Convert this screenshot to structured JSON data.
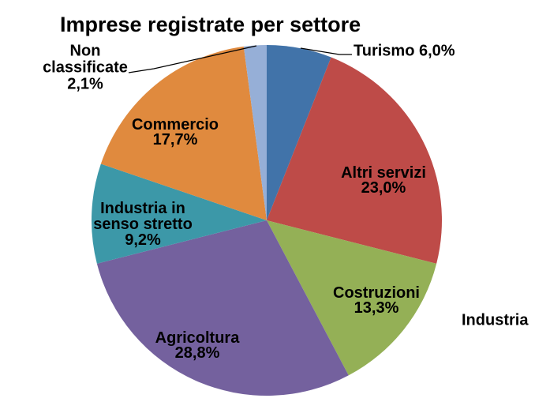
{
  "chart_data": {
    "type": "pie",
    "title": "Imprese registrate per settore",
    "direction": "clockwise",
    "start_angle_deg": 0,
    "legend_position": "none",
    "background_color": "#ffffff",
    "label_color": "#000000",
    "slices": [
      {
        "name": "Turismo",
        "pct": "6,0%",
        "value": 6.0,
        "color": "#4173A9",
        "label_placement": "callout-right"
      },
      {
        "name": "Altri servizi",
        "pct": "23,0%",
        "value": 23.0,
        "color": "#BE4B48",
        "label_placement": "inside"
      },
      {
        "name": "Costruzioni",
        "pct": "13,3%",
        "value": 13.3,
        "color": "#94B056",
        "label_placement": "inside"
      },
      {
        "name": "Agricoltura",
        "pct": "28,8%",
        "value": 28.8,
        "color": "#74619E",
        "label_placement": "inside"
      },
      {
        "name": "Industria in senso stretto",
        "pct": "9,2%",
        "value": 9.2,
        "color": "#3C98A8",
        "label_placement": "inside"
      },
      {
        "name": "Commercio",
        "pct": "17,7%",
        "value": 17.7,
        "color": "#E08A3E",
        "label_placement": "inside"
      },
      {
        "name": "Non classificate",
        "pct": "2,1%",
        "value": 2.1,
        "color": "#96AFD7",
        "label_placement": "callout-left"
      }
    ],
    "annotations": [
      {
        "text": "Industria"
      }
    ]
  }
}
